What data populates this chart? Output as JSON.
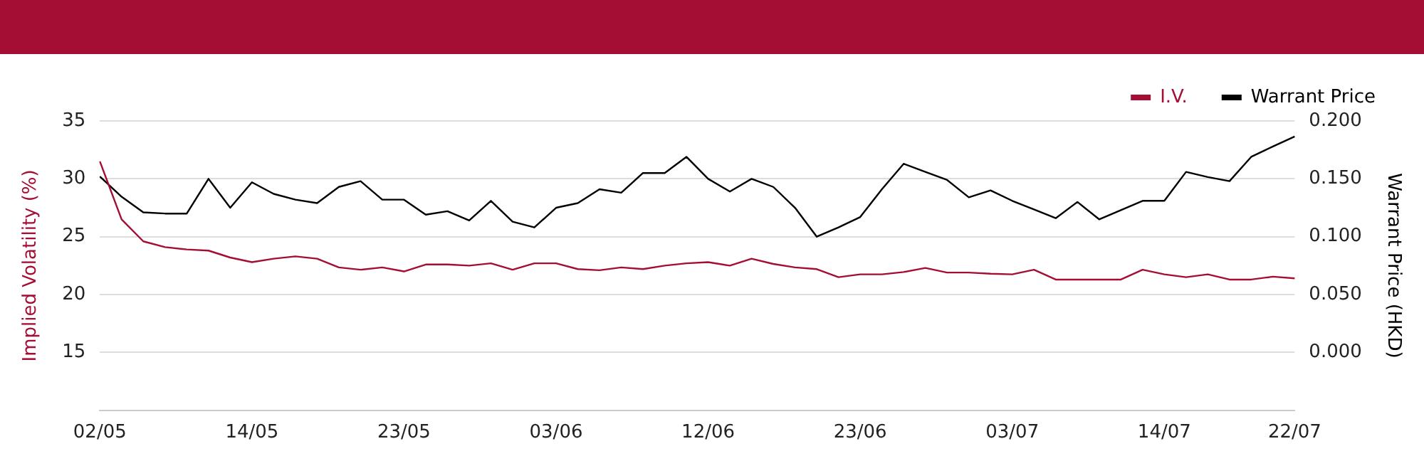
{
  "chart_data": {
    "type": "line",
    "categories": [
      "02/05",
      null,
      null,
      null,
      null,
      null,
      null,
      "14/05",
      null,
      null,
      null,
      null,
      null,
      null,
      "23/05",
      null,
      null,
      null,
      null,
      null,
      null,
      "03/06",
      null,
      null,
      null,
      null,
      null,
      null,
      "12/06",
      null,
      null,
      null,
      null,
      null,
      null,
      "23/06",
      null,
      null,
      null,
      null,
      null,
      null,
      "03/07",
      null,
      null,
      null,
      null,
      null,
      null,
      "14/07",
      null,
      null,
      null,
      null,
      null,
      "22/07"
    ],
    "series": [
      {
        "name": "I.V.",
        "color": "#a50e34",
        "values": [
          31.5,
          26.5,
          24.6,
          24.1,
          23.9,
          23.8,
          23.2,
          22.8,
          23.1,
          23.3,
          23.1,
          22.35,
          22.15,
          22.35,
          22.0,
          22.6,
          22.6,
          22.5,
          22.7,
          22.15,
          22.7,
          22.7,
          22.2,
          22.1,
          22.35,
          22.2,
          22.5,
          22.7,
          22.8,
          22.5,
          23.1,
          22.65,
          22.35,
          22.2,
          21.5,
          21.75,
          21.75,
          21.95,
          22.3,
          21.9,
          21.9,
          21.8,
          21.75,
          22.15,
          21.3,
          21.3,
          21.3,
          21.3,
          22.15,
          21.75,
          21.5,
          21.75,
          21.3,
          21.3,
          21.55,
          21.4
        ]
      },
      {
        "name": "Warrant Price",
        "color": "#000000",
        "axis": "y2",
        "values": [
          0.152,
          0.1345,
          0.121,
          0.12,
          0.12,
          0.15,
          0.125,
          0.147,
          0.137,
          0.132,
          0.129,
          0.143,
          0.148,
          0.132,
          0.132,
          0.119,
          0.122,
          0.114,
          0.131,
          0.113,
          0.108,
          0.125,
          0.129,
          0.141,
          0.138,
          0.155,
          0.155,
          0.169,
          0.15,
          0.139,
          0.15,
          0.143,
          0.125,
          0.1,
          0.108,
          0.117,
          0.141,
          0.163,
          0.156,
          0.149,
          0.134,
          0.14,
          0.131,
          0.1235,
          0.116,
          0.13,
          0.115,
          0.123,
          0.131,
          0.131,
          0.156,
          0.1515,
          0.148,
          0.169,
          0.178,
          0.1865
        ]
      }
    ],
    "ylabel": "Implied Volatility (%)",
    "y2label": "Warrant Price (HKD)",
    "ylim": [
      10,
      35
    ],
    "yticks": [
      15,
      20,
      25,
      30,
      35
    ],
    "y2lim": [
      -0.05,
      0.2
    ],
    "y2ticks": [
      {
        "value": 0,
        "label": "0.000"
      },
      {
        "value": 0.05,
        "label": "0.050"
      },
      {
        "value": 0.1,
        "label": "0.100"
      },
      {
        "value": 0.15,
        "label": "0.150"
      },
      {
        "value": 0.2,
        "label": "0.200"
      }
    ],
    "grid": "y",
    "legend": "top right",
    "marker": "none",
    "line_style": "solid"
  }
}
